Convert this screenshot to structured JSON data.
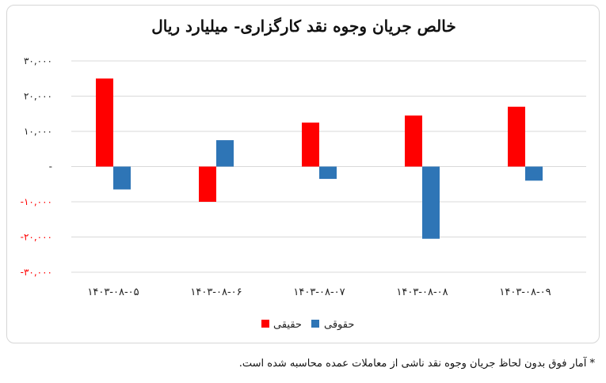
{
  "chart_data": {
    "type": "bar",
    "title": "خالص جریان وجوه نقد کارگزاری- میلیارد ریال",
    "categories": [
      "۱۴۰۳-۰۸-۰۵",
      "۱۴۰۳-۰۸-۰۶",
      "۱۴۰۳-۰۸-۰۷",
      "۱۴۰۳-۰۸-۰۸",
      "۱۴۰۳-۰۸-۰۹"
    ],
    "series": [
      {
        "name": "حقیقی",
        "color": "#ff0000",
        "values": [
          25000,
          -10000,
          12500,
          14500,
          17000
        ]
      },
      {
        "name": "حقوقی",
        "color": "#2e75b6",
        "values": [
          -6500,
          7500,
          -3500,
          -20500,
          -4000
        ]
      }
    ],
    "ylim": [
      -30000,
      30000
    ],
    "yticks": [
      {
        "value": 30000,
        "label": "۳۰,۰۰۰"
      },
      {
        "value": 20000,
        "label": "۲۰,۰۰۰"
      },
      {
        "value": 10000,
        "label": "۱۰,۰۰۰"
      },
      {
        "value": 0,
        "label": "-"
      },
      {
        "value": -10000,
        "label": "-۱۰,۰۰۰"
      },
      {
        "value": -20000,
        "label": "-۲۰,۰۰۰"
      },
      {
        "value": -30000,
        "label": "-۳۰,۰۰۰"
      }
    ],
    "negative_tick_color": "#ff0000",
    "positive_tick_color": "#222222",
    "grid": true,
    "legend_position": "bottom"
  },
  "footnote": "* آمار فوق بدون لحاظ جریان وجوه نقد ناشی از معاملات عمده محاسبه شده است."
}
